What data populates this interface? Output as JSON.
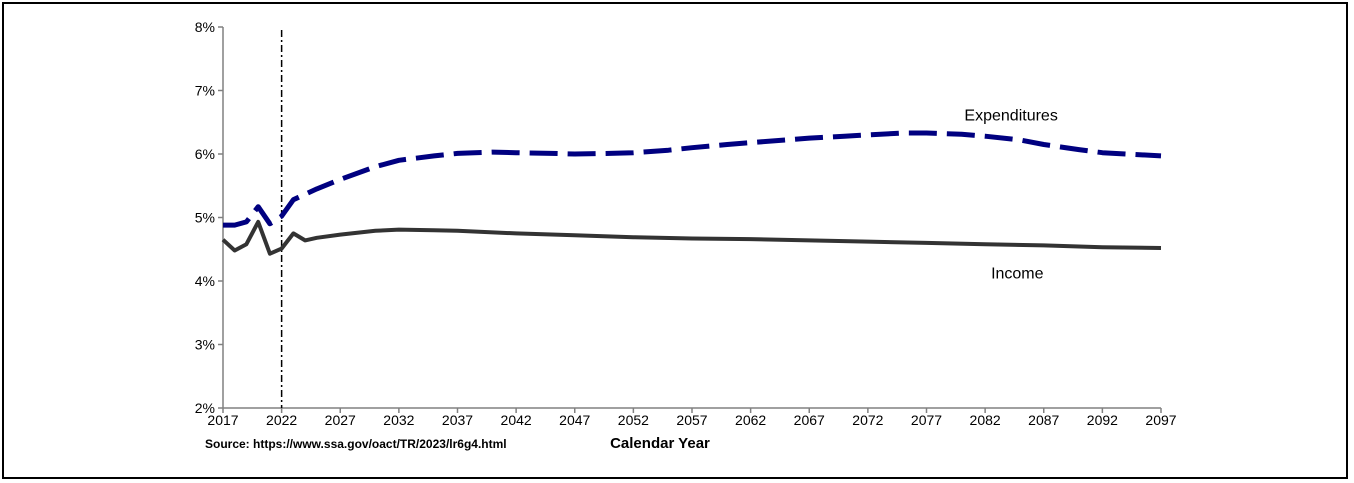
{
  "source_note": "Source: https://www.ssa.gov/oact/TR/2023/lr6g4.html",
  "chart_data": {
    "type": "line",
    "title": "",
    "xlabel": "Calendar Year",
    "ylabel": "",
    "xlim": [
      2017,
      2097
    ],
    "ylim": [
      2,
      8
    ],
    "x_ticks": [
      2017,
      2022,
      2027,
      2032,
      2037,
      2042,
      2047,
      2052,
      2057,
      2062,
      2067,
      2072,
      2077,
      2082,
      2087,
      2092,
      2097
    ],
    "y_ticks": [
      2,
      3,
      4,
      5,
      6,
      7,
      8
    ],
    "y_tick_labels": [
      "2%",
      "3%",
      "4%",
      "5%",
      "6%",
      "7%",
      "8%"
    ],
    "grid": false,
    "vertical_reference_line_year": 2022,
    "series": [
      {
        "name": "Expenditures",
        "color": "#000080",
        "style": "dashed",
        "x": [
          2017,
          2018,
          2019,
          2020,
          2021,
          2022,
          2023,
          2025,
          2027,
          2030,
          2032,
          2035,
          2037,
          2040,
          2042,
          2045,
          2047,
          2050,
          2052,
          2055,
          2057,
          2060,
          2062,
          2065,
          2067,
          2070,
          2072,
          2075,
          2077,
          2080,
          2082,
          2085,
          2087,
          2090,
          2092,
          2095,
          2097
        ],
        "values": [
          4.88,
          4.88,
          4.93,
          5.17,
          4.9,
          5.02,
          5.28,
          5.45,
          5.6,
          5.8,
          5.9,
          5.97,
          6.01,
          6.03,
          6.02,
          6.01,
          6.0,
          6.01,
          6.02,
          6.06,
          6.1,
          6.15,
          6.18,
          6.22,
          6.25,
          6.28,
          6.3,
          6.33,
          6.33,
          6.31,
          6.28,
          6.22,
          6.15,
          6.07,
          6.02,
          5.99,
          5.97
        ]
      },
      {
        "name": "Income",
        "color": "#333333",
        "style": "solid",
        "x": [
          2017,
          2018,
          2019,
          2020,
          2021,
          2022,
          2023,
          2024,
          2025,
          2027,
          2030,
          2032,
          2035,
          2037,
          2042,
          2047,
          2052,
          2057,
          2062,
          2067,
          2072,
          2077,
          2082,
          2087,
          2092,
          2097
        ],
        "values": [
          4.65,
          4.48,
          4.58,
          4.93,
          4.43,
          4.51,
          4.75,
          4.64,
          4.68,
          4.73,
          4.79,
          4.81,
          4.8,
          4.79,
          4.75,
          4.72,
          4.69,
          4.67,
          4.66,
          4.64,
          4.62,
          4.6,
          4.58,
          4.56,
          4.53,
          4.52
        ]
      }
    ]
  }
}
